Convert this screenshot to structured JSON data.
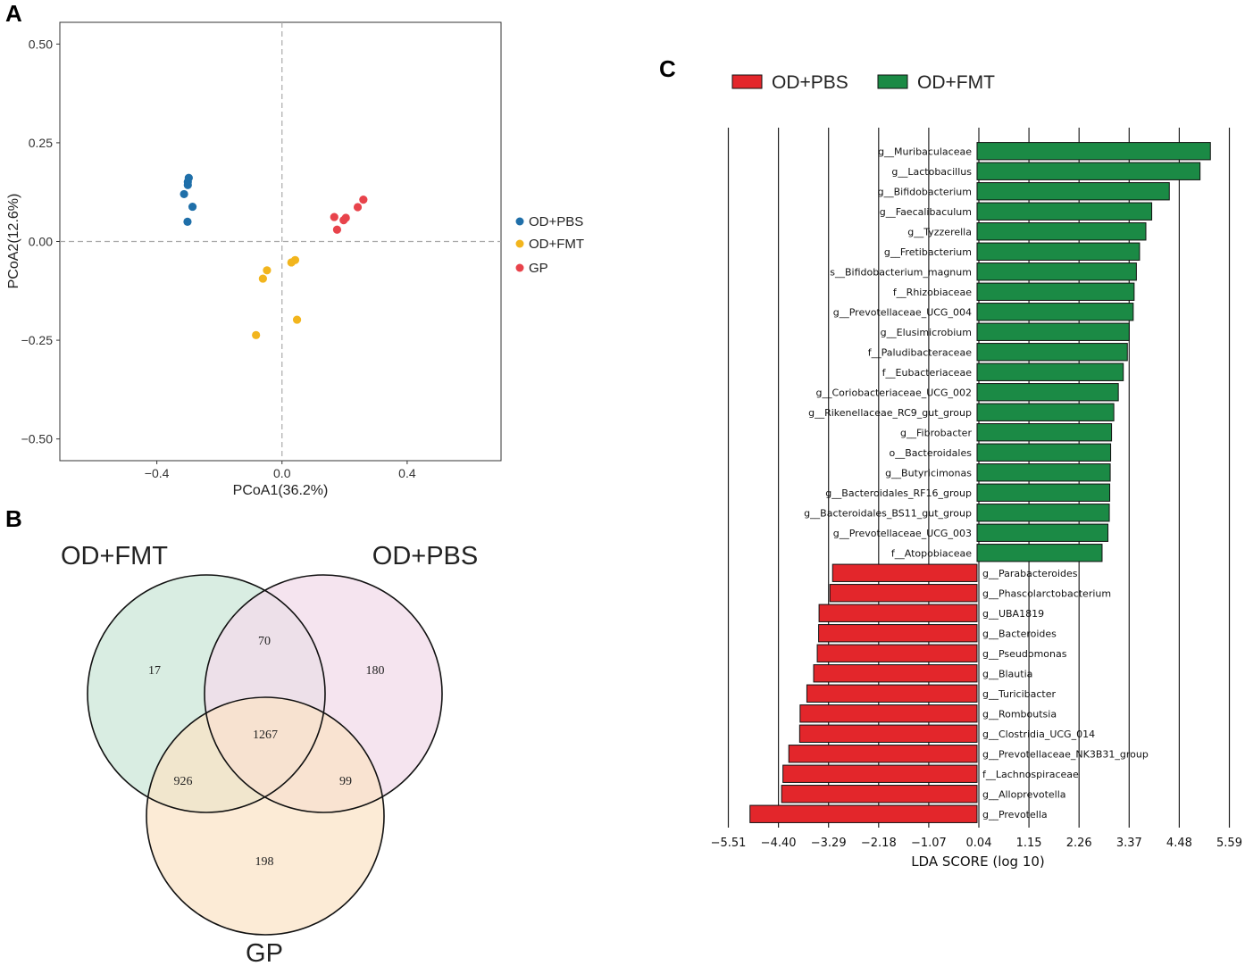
{
  "panels": {
    "a": "A",
    "b": "B",
    "c": "C"
  },
  "colors": {
    "od_pbs_point": "#1f6fa9",
    "od_fmt_point": "#f2b51d",
    "gp_point": "#e8434b",
    "lda_red": "#e3262b",
    "lda_green": "#1b8a45",
    "venn_fmt": "#d9ede2",
    "venn_pbs": "#f2dceb",
    "venn_gp": "#fbe3c4"
  },
  "chart_data": [
    {
      "type": "scatter",
      "panel": "A",
      "xlabel": "PCoA1(36.2%)",
      "ylabel": "PCoA2(12.6%)",
      "xlim": [
        -0.71,
        0.7
      ],
      "ylim": [
        -0.555,
        0.555
      ],
      "xticks": [
        -0.4,
        0.0,
        0.4
      ],
      "xtick_labels": [
        "−0.4",
        "0.0",
        "0.4"
      ],
      "yticks": [
        0.5,
        0.25,
        0.0,
        -0.25,
        -0.5
      ],
      "ytick_labels": [
        "0.50",
        "0.25",
        "0.00",
        "−0.25",
        "−0.50"
      ],
      "grid": false,
      "reference_lines": "dashed at x=0 and y=0",
      "legend_position": "right",
      "series": [
        {
          "name": "OD+PBS",
          "points": [
            [
              -0.298,
              0.161
            ],
            [
              -0.301,
              0.151
            ],
            [
              -0.301,
              0.143
            ],
            [
              -0.313,
              0.12
            ],
            [
              -0.286,
              0.088
            ],
            [
              -0.302,
              0.05
            ]
          ]
        },
        {
          "name": "OD+FMT",
          "points": [
            [
              0.042,
              -0.047
            ],
            [
              0.03,
              -0.053
            ],
            [
              -0.048,
              -0.073
            ],
            [
              -0.061,
              -0.094
            ],
            [
              0.048,
              -0.198
            ],
            [
              -0.083,
              -0.237
            ]
          ]
        },
        {
          "name": "GP",
          "points": [
            [
              0.26,
              0.106
            ],
            [
              0.242,
              0.087
            ],
            [
              0.167,
              0.062
            ],
            [
              0.204,
              0.06
            ],
            [
              0.197,
              0.054
            ],
            [
              0.176,
              0.03
            ]
          ]
        }
      ]
    },
    {
      "type": "venn",
      "panel": "B",
      "sets": [
        "OD+FMT",
        "OD+PBS",
        "GP"
      ],
      "regions": {
        "fmt_only": "17",
        "fmt_pbs": "70",
        "pbs_only": "180",
        "all": "1267",
        "fmt_gp": "926",
        "pbs_gp": "99",
        "gp_only": "198"
      }
    },
    {
      "type": "bar",
      "panel": "C",
      "orientation": "horizontal",
      "xlabel": "LDA SCORE (log 10)",
      "xlim": [
        -5.51,
        5.59
      ],
      "xticks": [
        -5.51,
        -4.4,
        -3.29,
        -2.18,
        -1.07,
        0.04,
        1.15,
        2.26,
        3.37,
        4.48,
        5.59
      ],
      "xtick_labels": [
        "−5.51",
        "−4.40",
        "−3.29",
        "−2.18",
        "−1.07",
        "0.04",
        "1.15",
        "2.26",
        "3.37",
        "4.48",
        "5.59"
      ],
      "legend": [
        "OD+PBS",
        "OD+FMT"
      ],
      "legend_position": "top",
      "series": [
        {
          "name": "OD+FMT",
          "categories": [
            "g__Muribaculaceae",
            "g__Lactobacillus",
            "g__Bifidobacterium",
            "g__Faecalibaculum",
            "g__Tyzzerella",
            "g__Fretibacterium",
            "s__Bifidobacterium_magnum",
            "f__Rhizobiaceae",
            "g__Prevotellaceae_UCG_004",
            "g__Elusimicrobium",
            "f__Paludibacteraceae",
            "f__Eubacteriaceae",
            "g__Coriobacteriaceae_UCG_002",
            "g__Rikenellaceae_RC9_gut_group",
            "g__Fibrobacter",
            "o__Bacteroidales",
            "g__Butyricimonas",
            "g__Bacteroidales_RF16_group",
            "g__Bacteroidales_BS11_gut_group",
            "g__Prevotellaceae_UCG_003",
            "f__Atopobiaceae"
          ],
          "values": [
            5.17,
            4.94,
            4.26,
            3.87,
            3.74,
            3.6,
            3.53,
            3.48,
            3.46,
            3.37,
            3.33,
            3.24,
            3.13,
            3.03,
            2.98,
            2.96,
            2.95,
            2.94,
            2.93,
            2.9,
            2.77
          ]
        },
        {
          "name": "OD+PBS",
          "categories": [
            "g__Parabacteroides",
            "g__Phascolarctobacterium",
            "g__UBA1819",
            "g__Bacteroides",
            "g__Pseudomonas",
            "g__Blautia",
            "g__Turicibacter",
            "g__Romboutsia",
            "g__Clostridia_UCG_014",
            "g__Prevotellaceae_NK3B31_group",
            "f__Lachnospiraceae",
            "g__Alloprevotella",
            "g__Prevotella"
          ],
          "values": [
            -3.2,
            -3.26,
            -3.5,
            -3.51,
            -3.54,
            -3.62,
            -3.77,
            -3.92,
            -3.93,
            -4.17,
            -4.3,
            -4.33,
            -5.03
          ]
        }
      ]
    }
  ]
}
